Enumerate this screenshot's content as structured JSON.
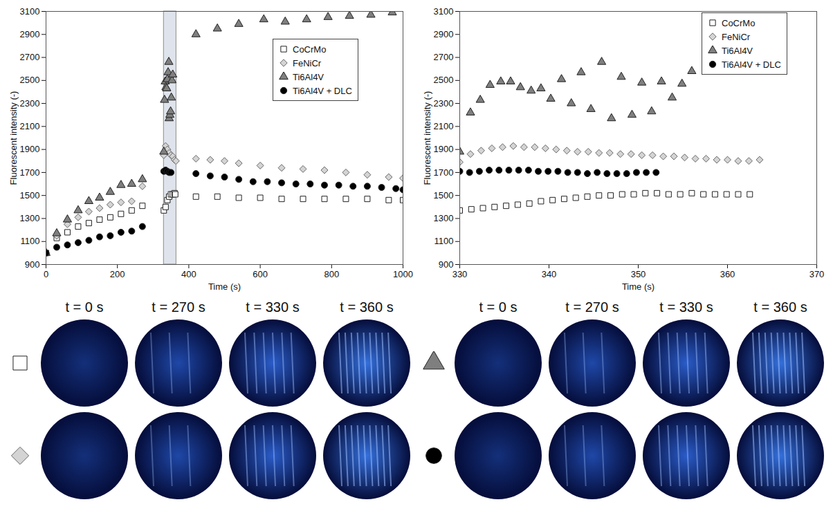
{
  "chart_data": [
    {
      "type": "scatter",
      "x_label": "Time (s)",
      "y_label": "Fluorescent intensity (-)",
      "xlim": [
        0,
        1000
      ],
      "xticks": [
        0,
        200,
        400,
        600,
        800,
        1000
      ],
      "ylim": [
        900,
        3100
      ],
      "yticks": [
        900,
        1100,
        1300,
        1500,
        1700,
        1900,
        2100,
        2300,
        2500,
        2700,
        2900,
        3100
      ],
      "grid": false,
      "legend": "top-right",
      "shaded_range": [
        330,
        365
      ],
      "series": [
        {
          "name": "CoCrMo",
          "color": "#ffffff",
          "marker": "square",
          "x": [
            0,
            30,
            60,
            90,
            120,
            150,
            180,
            210,
            240,
            270,
            330,
            335,
            340,
            345,
            350,
            355,
            360,
            362,
            420,
            480,
            540,
            600,
            660,
            720,
            780,
            840,
            900,
            960,
            1000
          ],
          "values": [
            1000,
            1130,
            1180,
            1230,
            1260,
            1290,
            1310,
            1340,
            1370,
            1410,
            1370,
            1400,
            1460,
            1490,
            1510,
            1510,
            1520,
            1510,
            1490,
            1490,
            1480,
            1480,
            1470,
            1470,
            1470,
            1470,
            1470,
            1460,
            1460
          ]
        },
        {
          "name": "FeNiCr",
          "color": "#d4d4d4",
          "marker": "diamond",
          "x": [
            0,
            30,
            60,
            90,
            120,
            150,
            180,
            210,
            240,
            270,
            330,
            335,
            340,
            345,
            350,
            355,
            360,
            364,
            420,
            460,
            500,
            540,
            600,
            660,
            720,
            780,
            840,
            900,
            960,
            1000
          ],
          "values": [
            1000,
            1150,
            1250,
            1310,
            1360,
            1390,
            1420,
            1440,
            1450,
            1580,
            1850,
            1930,
            1900,
            1870,
            1850,
            1840,
            1810,
            1800,
            1820,
            1810,
            1800,
            1780,
            1760,
            1740,
            1730,
            1720,
            1700,
            1680,
            1660,
            1650
          ]
        },
        {
          "name": "Ti6Al4V",
          "color": "#7f7f7f",
          "marker": "triangle",
          "x": [
            0,
            30,
            60,
            90,
            120,
            150,
            180,
            210,
            240,
            270,
            330,
            332,
            334,
            336,
            338,
            340,
            342,
            344,
            345,
            347,
            349,
            351,
            353,
            355,
            420,
            480,
            540,
            610,
            670,
            730,
            790,
            850,
            910,
            970
          ],
          "values": [
            1000,
            1170,
            1290,
            1370,
            1450,
            1480,
            1530,
            1590,
            1600,
            1640,
            1880,
            2330,
            2490,
            2440,
            2430,
            2510,
            2570,
            2660,
            2170,
            2200,
            2230,
            2350,
            2500,
            2550,
            2900,
            2950,
            2990,
            3030,
            3010,
            3030,
            3050,
            3060,
            3070,
            3090
          ]
        },
        {
          "name": "Ti6Al4V + DLC",
          "color": "#000000",
          "marker": "circle",
          "x": [
            0,
            30,
            60,
            90,
            120,
            150,
            180,
            210,
            240,
            270,
            330,
            335,
            340,
            345,
            350,
            420,
            460,
            500,
            540,
            580,
            620,
            660,
            700,
            740,
            780,
            820,
            860,
            900,
            940,
            980,
            1000
          ],
          "values": [
            1000,
            1050,
            1070,
            1090,
            1110,
            1140,
            1150,
            1180,
            1190,
            1230,
            1710,
            1720,
            1710,
            1700,
            1700,
            1690,
            1670,
            1660,
            1640,
            1620,
            1620,
            1610,
            1600,
            1600,
            1590,
            1590,
            1580,
            1580,
            1570,
            1560,
            1550
          ]
        }
      ]
    },
    {
      "type": "scatter",
      "x_label": "Time (s)",
      "y_label": "Fluorescent intensity (-)",
      "xlim": [
        330,
        370
      ],
      "xticks": [
        330,
        340,
        350,
        360,
        370
      ],
      "ylim": [
        900,
        3100
      ],
      "yticks": [
        900,
        1100,
        1300,
        1500,
        1700,
        1900,
        2100,
        2300,
        2500,
        2700,
        2900,
        3100
      ],
      "grid": false,
      "legend": "top-right",
      "series": [
        {
          "name": "CoCrMo",
          "color": "#ffffff",
          "marker": "square",
          "x": [
            330,
            331.3,
            332.6,
            333.9,
            335.2,
            336.5,
            337.8,
            339.1,
            340.4,
            341.7,
            343,
            344.3,
            345.6,
            346.9,
            348.2,
            349.5,
            350.8,
            352.1,
            353.4,
            354.7,
            356,
            357.3,
            358.6,
            359.9,
            361.2,
            362.5
          ],
          "values": [
            1370,
            1380,
            1390,
            1400,
            1410,
            1420,
            1430,
            1450,
            1460,
            1470,
            1480,
            1490,
            1500,
            1500,
            1510,
            1510,
            1520,
            1520,
            1510,
            1510,
            1520,
            1510,
            1510,
            1510,
            1510,
            1510
          ]
        },
        {
          "name": "FeNiCr",
          "color": "#d4d4d4",
          "marker": "diamond",
          "x": [
            330,
            331.2,
            332.4,
            333.6,
            334.8,
            336,
            337.2,
            338.4,
            339.6,
            340.8,
            342,
            343.2,
            344.4,
            345.6,
            346.8,
            348,
            349.2,
            350.4,
            351.6,
            352.8,
            354,
            355.2,
            356.4,
            357.6,
            358.8,
            360,
            361.2,
            362.4,
            363.6
          ],
          "values": [
            1790,
            1860,
            1890,
            1910,
            1920,
            1930,
            1920,
            1920,
            1910,
            1900,
            1890,
            1880,
            1880,
            1870,
            1870,
            1860,
            1860,
            1850,
            1850,
            1840,
            1840,
            1830,
            1820,
            1820,
            1810,
            1810,
            1800,
            1800,
            1810
          ]
        },
        {
          "name": "Ti6Al4V",
          "color": "#7f7f7f",
          "marker": "triangle",
          "x": [
            330,
            331.2,
            332.3,
            333.4,
            334.6,
            335.7,
            336.8,
            338,
            339.1,
            340.2,
            341.4,
            342.5,
            343.6,
            344.7,
            345.9,
            347,
            348.1,
            349.3,
            350.4,
            351.5,
            352.6,
            353.8,
            354.9,
            356
          ],
          "values": [
            1880,
            2220,
            2330,
            2460,
            2490,
            2490,
            2440,
            2410,
            2430,
            2340,
            2510,
            2300,
            2570,
            2250,
            2660,
            2170,
            2530,
            2200,
            2480,
            2230,
            2490,
            2350,
            2470,
            2580
          ]
        },
        {
          "name": "Ti6Al4V + DLC",
          "color": "#000000",
          "marker": "circle",
          "x": [
            330,
            331.1,
            332.2,
            333.3,
            334.4,
            335.5,
            336.6,
            337.7,
            338.8,
            339.9,
            341,
            342.1,
            343.2,
            344.3,
            345.4,
            346.5,
            347.6,
            348.7,
            349.8,
            350.9,
            352
          ],
          "values": [
            1710,
            1700,
            1710,
            1720,
            1720,
            1720,
            1720,
            1720,
            1710,
            1710,
            1710,
            1700,
            1700,
            1690,
            1700,
            1690,
            1690,
            1690,
            1700,
            1700,
            1700
          ]
        }
      ]
    }
  ],
  "image_grid": {
    "time_labels": [
      "t = 0 s",
      "t = 270 s",
      "t = 330 s",
      "t = 360 s"
    ],
    "panels": [
      {
        "rows": [
          "CoCrMo",
          "FeNiCr"
        ]
      },
      {
        "rows": [
          "Ti6Al4V",
          "Ti6Al4V + DLC"
        ]
      }
    ]
  }
}
